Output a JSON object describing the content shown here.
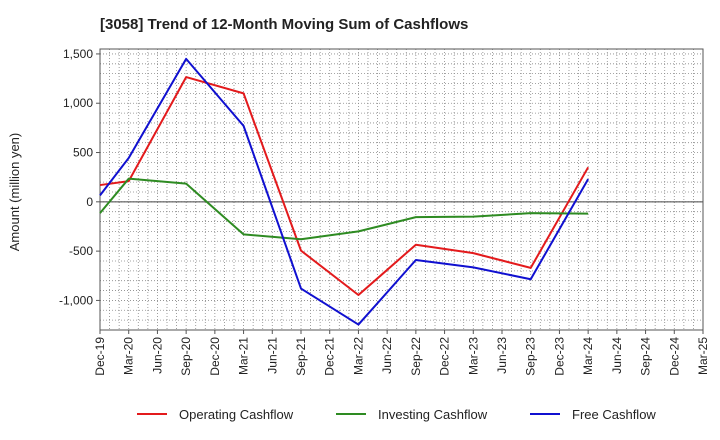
{
  "chart_data": {
    "type": "line",
    "title": "[3058]  Trend of 12-Month Moving Sum of Cashflows",
    "ylabel": "Amount (million yen)",
    "xlabel": "",
    "ylim": [
      -1300,
      1550
    ],
    "yticks": [
      1500,
      1000,
      500,
      0,
      -500,
      -1000
    ],
    "ytick_labels": [
      "1,500",
      "1,000",
      "500",
      "0",
      "-500",
      "-1,000"
    ],
    "categories": [
      "Dec-19",
      "Mar-20",
      "Jun-20",
      "Sep-20",
      "Dec-20",
      "Mar-21",
      "Jun-21",
      "Sep-21",
      "Dec-21",
      "Mar-22",
      "Jun-22",
      "Sep-22",
      "Dec-22",
      "Mar-23",
      "Jun-23",
      "Sep-23",
      "Dec-23",
      "Mar-24",
      "Jun-24",
      "Sep-24",
      "Dec-24",
      "Mar-25"
    ],
    "grid": true,
    "legend_position": "bottom",
    "series": [
      {
        "name": "Operating Cashflow",
        "color": "#e31a1c",
        "values": [
          170,
          210,
          null,
          1265,
          null,
          1100,
          null,
          -495,
          null,
          -945,
          null,
          -435,
          null,
          -520,
          null,
          -670,
          null,
          350,
          null,
          null,
          null,
          null
        ]
      },
      {
        "name": "Investing Cashflow",
        "color": "#2e8b22",
        "values": [
          -115,
          235,
          null,
          185,
          null,
          -330,
          null,
          -380,
          null,
          -300,
          null,
          -155,
          null,
          -150,
          null,
          -115,
          null,
          -120,
          null,
          null,
          null,
          null
        ]
      },
      {
        "name": "Free Cashflow",
        "color": "#1010d0",
        "values": [
          65,
          445,
          null,
          1450,
          null,
          770,
          null,
          -880,
          null,
          -1245,
          null,
          -590,
          null,
          -665,
          null,
          -785,
          null,
          230,
          null,
          null,
          null,
          null
        ]
      }
    ]
  }
}
